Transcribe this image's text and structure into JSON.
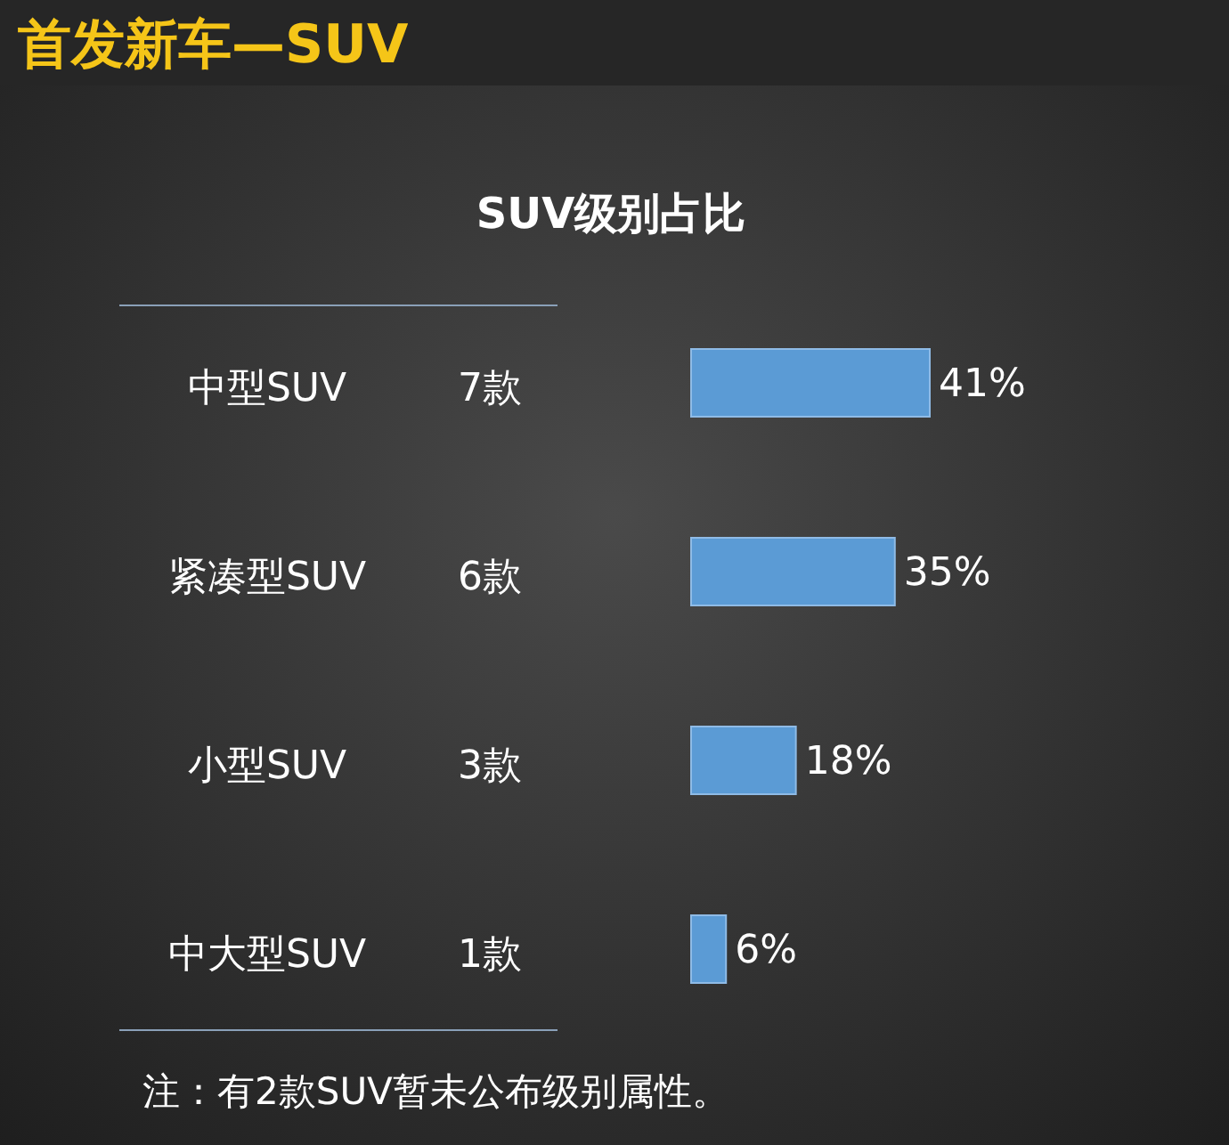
{
  "chart_data": {
    "type": "bar",
    "orientation": "horizontal",
    "title": "首发新车—SUV",
    "subtitle": "SUV级别占比",
    "categories": [
      "中型SUV",
      "紧凑型SUV",
      "小型SUV",
      "中大型SUV"
    ],
    "values": [
      41,
      35,
      18,
      6
    ],
    "value_labels": [
      "41%",
      "35%",
      "18%",
      "6%"
    ],
    "color": "#5b9bd5",
    "annotations": [
      "7款",
      "6款",
      "3款",
      "1款",
      "注：有2款SUV暂未公布级别属性。"
    ]
  }
}
